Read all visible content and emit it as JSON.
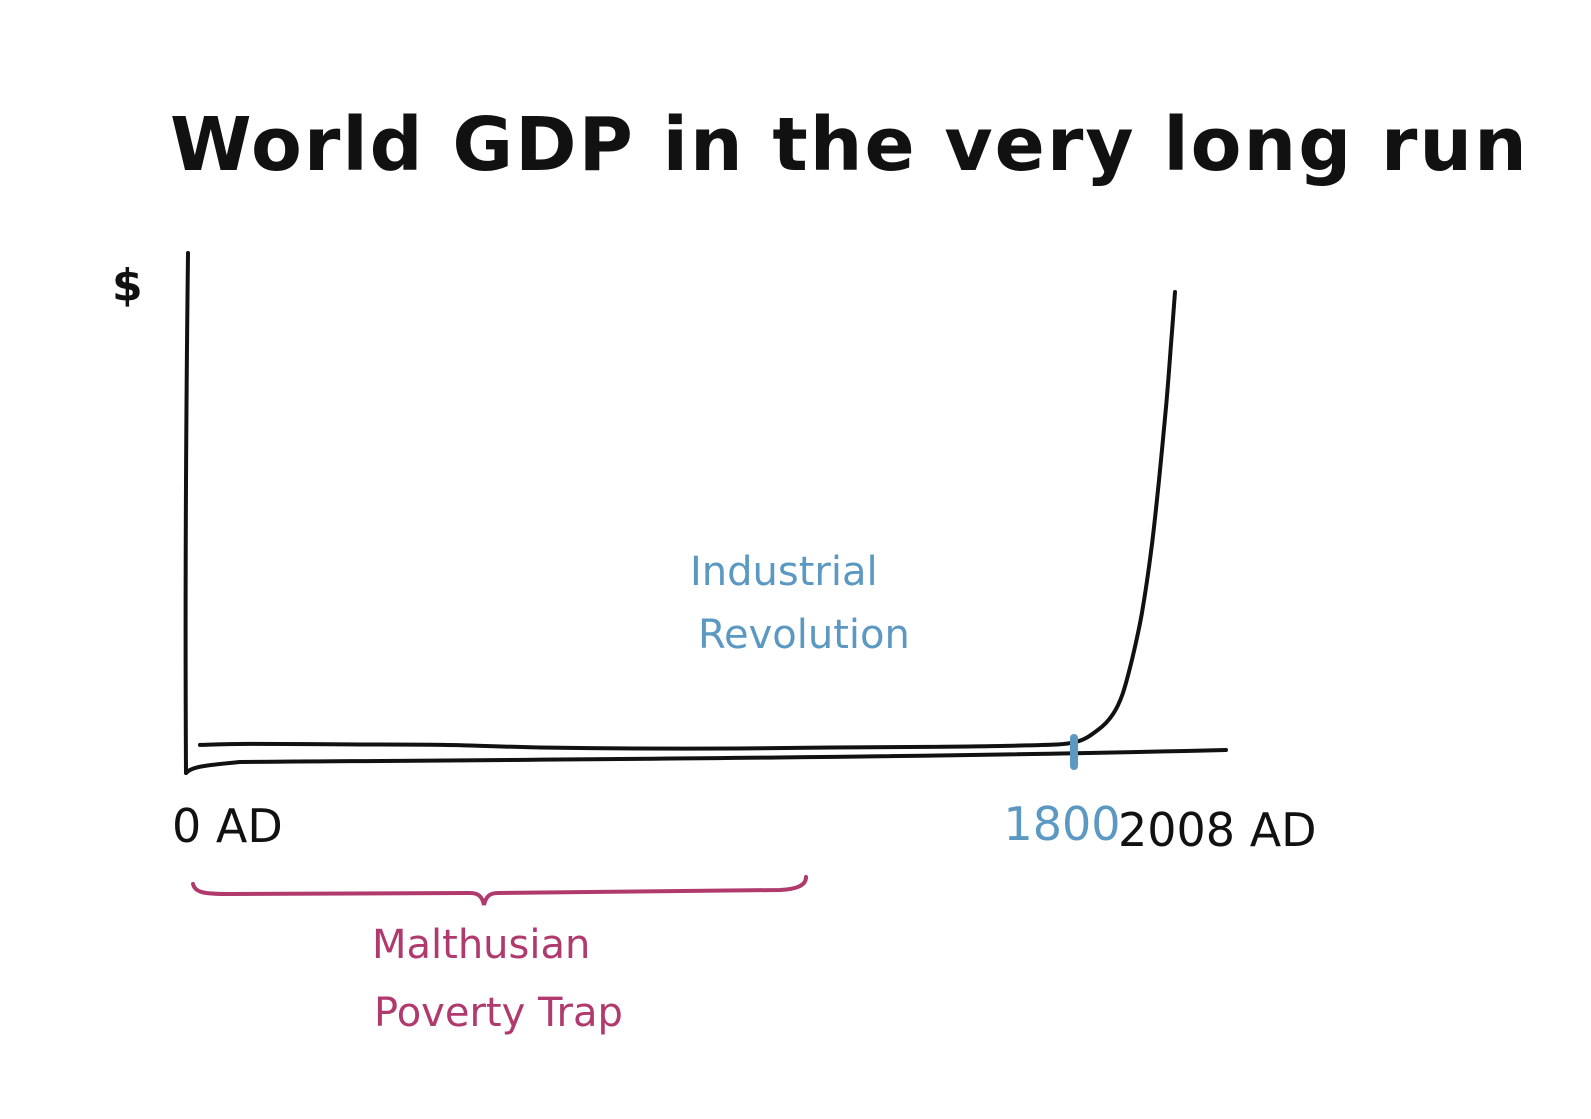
{
  "chart_data": {
    "type": "line",
    "title": "World GDP in the very long run",
    "ylabel": "$",
    "xlabel": "",
    "x_ticks": [
      {
        "value": 0,
        "label": "0 AD"
      },
      {
        "value": 1800,
        "label": "1800"
      },
      {
        "value": 2008,
        "label": "2008 AD"
      }
    ],
    "xlim": [
      0,
      2008
    ],
    "ylim": [
      0,
      100
    ],
    "series": [
      {
        "x": [
          0,
          100,
          300,
          500,
          700,
          900,
          1100,
          1300,
          1500,
          1700,
          1800,
          1850,
          1880,
          1900,
          1920,
          1940,
          1960,
          1975,
          1990,
          2000,
          2008
        ],
        "y": [
          1,
          1.2,
          1.1,
          1,
          0.5,
          0.3,
          0.3,
          0.5,
          0.6,
          0.9,
          1.5,
          4,
          7,
          11,
          18,
          27,
          40,
          53,
          68,
          80,
          90
        ],
        "color": "#111111"
      }
    ],
    "annotations": [
      {
        "text": [
          "Industrial",
          "Revolution"
        ],
        "x": 1800,
        "color": "#5b98c2"
      },
      {
        "text": [
          "Malthusian",
          "Poverty Trap"
        ],
        "x_range": [
          0,
          1800
        ],
        "color": "#b03a6e"
      }
    ],
    "grid": false,
    "legend": "none"
  },
  "colors": {
    "ink": "#111111",
    "blue": "#5b98c2",
    "magenta": "#b03a6e"
  }
}
